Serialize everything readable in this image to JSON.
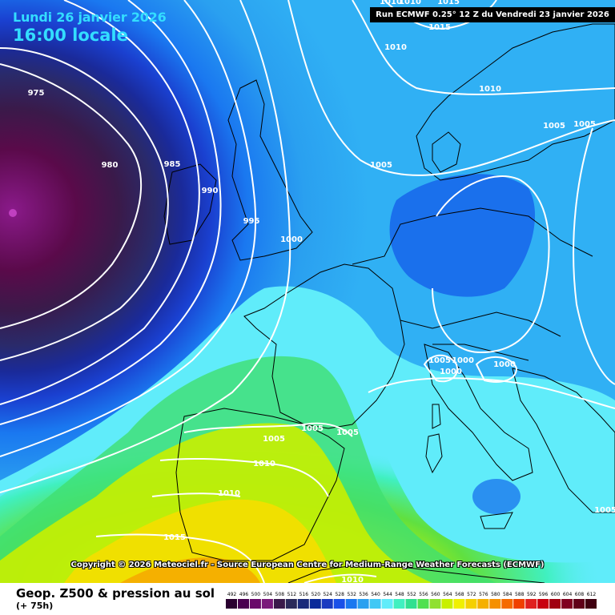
{
  "header": {
    "date": "Lundi 26 janvier 2026",
    "time": "16:00 locale"
  },
  "run_info": "Run ECMWF 0.25° 12 Z du Vendredi 23 janvier 2026",
  "copyright": "Copyright © 2026 Meteociel.fr - Source European Centre for Medium-Range Weather Forecasts (ECMWF)",
  "footer": {
    "title": "Geop. Z500 & pression au sol",
    "subtitle": "(+ 75h)"
  },
  "legend": {
    "labels": [
      "492",
      "496",
      "500",
      "504",
      "508",
      "512",
      "516",
      "520",
      "524",
      "528",
      "532",
      "536",
      "540",
      "544",
      "548",
      "552",
      "556",
      "560",
      "564",
      "568",
      "572",
      "576",
      "580",
      "584",
      "588",
      "592",
      "596",
      "600",
      "604",
      "608",
      "612"
    ],
    "colors": [
      "#2a0030",
      "#4a0050",
      "#6a0a6a",
      "#7a1a7a",
      "#3a1a4a",
      "#2a2a5a",
      "#1a2a7a",
      "#0a2a9a",
      "#1a3ac0",
      "#1a50e8",
      "#1a78f0",
      "#2aa0f0",
      "#40c8f5",
      "#60ecfa",
      "#40f0c0",
      "#30e090",
      "#50e050",
      "#90e030",
      "#c8f000",
      "#f0f000",
      "#f5d000",
      "#f5b000",
      "#f59000",
      "#f56a00",
      "#f04000",
      "#e02020",
      "#c80010",
      "#a00010",
      "#800020",
      "#600018",
      "#400010"
    ]
  },
  "isobars": [
    {
      "label": "975"
    },
    {
      "label": "980"
    },
    {
      "label": "985"
    },
    {
      "label": "990"
    },
    {
      "label": "995"
    },
    {
      "label": "1000"
    },
    {
      "label": "1005"
    },
    {
      "label": "1010"
    },
    {
      "label": "1015"
    },
    {
      "label": "1010"
    },
    {
      "label": "1015"
    },
    {
      "label": "1010"
    },
    {
      "label": "1010"
    },
    {
      "label": "1005"
    },
    {
      "label": "1005"
    },
    {
      "label": "1005"
    },
    {
      "label": "1005"
    },
    {
      "label": "1005"
    },
    {
      "label": "1000"
    },
    {
      "label": "1000"
    },
    {
      "label": "1000"
    },
    {
      "label": "1005"
    },
    {
      "label": "1005"
    },
    {
      "label": "1010"
    },
    {
      "label": "1010"
    },
    {
      "label": "1015"
    },
    {
      "label": "1010"
    }
  ]
}
